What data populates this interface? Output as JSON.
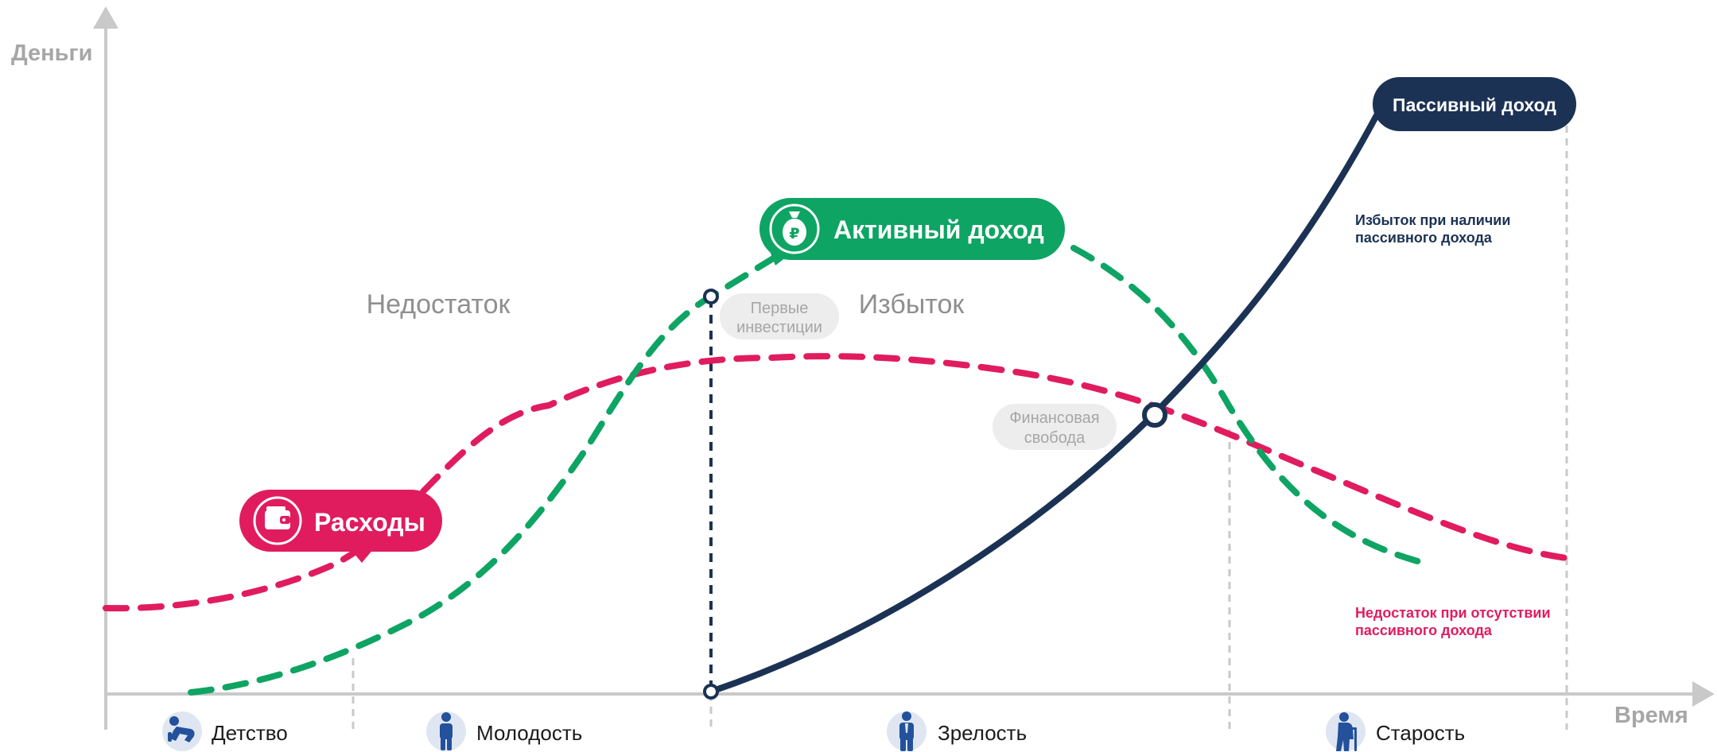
{
  "axes": {
    "y_label": "Деньги",
    "x_label": "Время"
  },
  "labels": {
    "deficit": "Недостаток",
    "surplus": "Избыток",
    "first_investments": [
      "Первые",
      "инвестиции"
    ],
    "financial_freedom": [
      "Финансовая",
      "свобода"
    ],
    "surplus_passive": [
      "Избыток при наличии",
      "пассивного дохода"
    ],
    "deficit_no_passive": [
      "Недостаток при отсутствии",
      "пассивного дохода"
    ]
  },
  "series": {
    "expenses": {
      "name": "Расходы",
      "color": "#e01c5f",
      "icon": "wallet-icon"
    },
    "active_income": {
      "name": "Активный доход",
      "color": "#0ea463",
      "icon": "money-bag-ruble-icon"
    },
    "passive_income": {
      "name": "Пассивный доход",
      "color": "#1b3254"
    }
  },
  "life_stages": [
    {
      "label": "Детство",
      "icon": "crawling-baby-icon"
    },
    {
      "label": "Молодость",
      "icon": "young-person-icon"
    },
    {
      "label": "Зрелость",
      "icon": "adult-person-icon"
    },
    {
      "label": "Старость",
      "icon": "elderly-person-icon"
    }
  ],
  "colors": {
    "axis": "#c9c9c9",
    "muted_text": "#a6a6a6",
    "stage_text": "#1b1b1b",
    "pill_bg": "#ededed",
    "icon_circle": "#dfe6f2",
    "icon_figure": "#23519b"
  }
}
